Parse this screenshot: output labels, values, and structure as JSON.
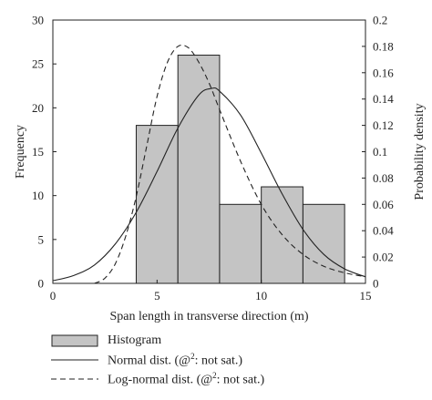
{
  "chart_data": {
    "type": "bar",
    "xlabel": "Span length in transverse direction (m)",
    "ylabel_left": "Frequency",
    "ylabel_right": "Probability density",
    "xlim": [
      0,
      15
    ],
    "ylim_left": [
      0,
      30
    ],
    "ylim_right": [
      0,
      0.2
    ],
    "x_ticks": [
      "0",
      "5",
      "10",
      "15"
    ],
    "y_ticks_left": [
      "0",
      "5",
      "10",
      "15",
      "20",
      "25",
      "30"
    ],
    "y_ticks_right": [
      "0",
      "0.02",
      "0.04",
      "0.06",
      "0.08",
      "0.1",
      "0.12",
      "0.14",
      "0.16",
      "0.18",
      "0.2"
    ],
    "histogram": {
      "name": "Histogram",
      "bin_edges": [
        4,
        6,
        8,
        10,
        12,
        14
      ],
      "frequencies": [
        18,
        26,
        9,
        11,
        9
      ],
      "color": "#c4c4c4"
    },
    "curves": [
      {
        "name": "Normal dist. (@²: not sat.)",
        "style": "solid",
        "x": [
          0,
          1,
          2,
          3,
          4,
          5,
          6,
          7,
          7.6,
          8,
          9,
          10,
          11,
          12,
          13,
          14,
          15
        ],
        "y": [
          0.002,
          0.006,
          0.014,
          0.03,
          0.054,
          0.085,
          0.118,
          0.143,
          0.148,
          0.146,
          0.128,
          0.099,
          0.068,
          0.041,
          0.022,
          0.011,
          0.005
        ]
      },
      {
        "name": "Log-normal dist. (@²: not sat.)",
        "style": "dashed",
        "x": [
          2,
          2.5,
          3,
          3.5,
          4,
          4.5,
          5,
          5.5,
          6,
          6.5,
          7,
          7.5,
          8,
          9,
          10,
          11,
          12,
          13,
          14,
          15
        ],
        "y": [
          0.0,
          0.004,
          0.015,
          0.036,
          0.066,
          0.104,
          0.142,
          0.168,
          0.18,
          0.179,
          0.168,
          0.152,
          0.132,
          0.093,
          0.06,
          0.037,
          0.022,
          0.013,
          0.008,
          0.005
        ]
      }
    ]
  },
  "legend": {
    "histogram": "Histogram",
    "normal_prefix": "Normal dist. (@",
    "normal_sup": "2",
    "normal_suffix": ": not sat.)",
    "lognormal_prefix": "Log-normal dist. (@",
    "lognormal_sup": "2",
    "lognormal_suffix": ": not sat.)"
  }
}
